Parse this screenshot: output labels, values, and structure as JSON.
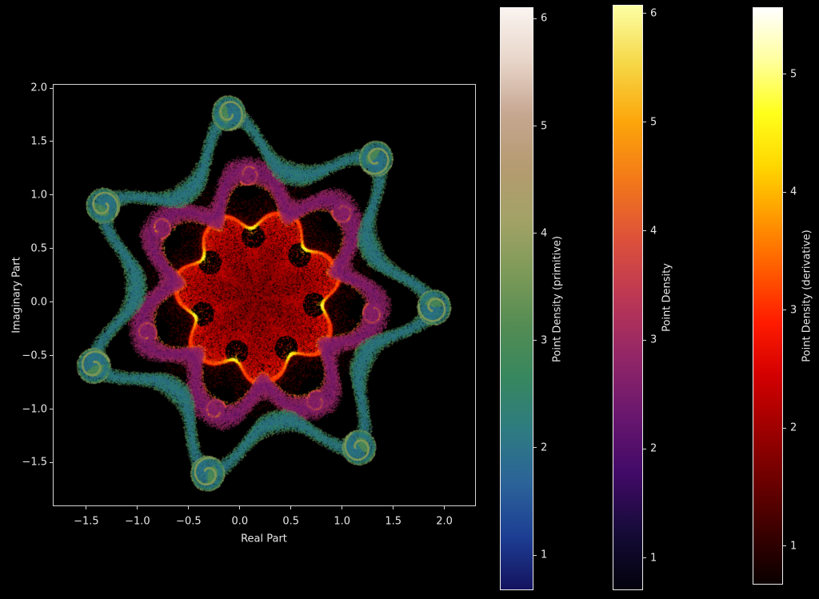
{
  "figure": {
    "background_color": "#000000",
    "text_color": "#e8e8e8",
    "spine_color": "#d4d4d4"
  },
  "axes": {
    "xlabel": "Real Part",
    "ylabel": "Imaginary Part",
    "xlim": [
      -1.82,
      2.3
    ],
    "ylim": [
      -1.9,
      2.03
    ],
    "x_tick_values": [
      -1.5,
      -1.0,
      -0.5,
      0.0,
      0.5,
      1.0,
      1.5,
      2.0
    ],
    "x_tick_labels": [
      "−1.5",
      "−1.0",
      "−0.5",
      "0.0",
      "0.5",
      "1.0",
      "1.5",
      "2.0"
    ],
    "y_tick_values": [
      2.0,
      1.5,
      1.0,
      0.5,
      0.0,
      -0.5,
      -1.0,
      -1.5
    ],
    "y_tick_labels": [
      "2.0",
      "1.5",
      "1.0",
      "0.5",
      "0.0",
      "−0.5",
      "−1.0",
      "−1.5"
    ]
  },
  "colorbars": [
    {
      "id": "primitive",
      "label": "Point Density (primitive)",
      "colormap": "gist_earth",
      "vmin": 0.68,
      "vmax": 6.1,
      "tick_values": [
        6,
        5,
        4,
        3,
        2,
        1
      ],
      "tick_labels": [
        "6",
        "5",
        "4",
        "3",
        "2",
        "1"
      ],
      "gradient_bottom_to_top": [
        "#14135f",
        "#1d3e93",
        "#2b6399",
        "#2e7b81",
        "#37875f",
        "#548c53",
        "#7d9a58",
        "#a3a266",
        "#b59b71",
        "#c6a791",
        "#e8d5c9",
        "#faf4f0"
      ]
    },
    {
      "id": "main",
      "label": "Point Density",
      "colormap": "inferno",
      "vmin": 0.71,
      "vmax": 6.07,
      "tick_values": [
        6,
        5,
        4,
        3,
        2,
        1
      ],
      "tick_labels": [
        "6",
        "5",
        "4",
        "3",
        "2",
        "1"
      ],
      "gradient_bottom_to_top": [
        "#02020c",
        "#160b39",
        "#420a68",
        "#6a176e",
        "#932667",
        "#bc3754",
        "#dd513a",
        "#f37819",
        "#fca50a",
        "#f6d746",
        "#fcffa4"
      ]
    },
    {
      "id": "derivative",
      "label": "Point Density (derivative)",
      "colormap": "hot",
      "vmin": 0.68,
      "vmax": 5.56,
      "tick_values": [
        5,
        4,
        3,
        2,
        1
      ],
      "tick_labels": [
        "5",
        "4",
        "3",
        "2",
        "1"
      ],
      "gradient_bottom_to_top": [
        "#0a0000",
        "#3b0000",
        "#6e0000",
        "#a10000",
        "#d40000",
        "#ff1c00",
        "#ff5b00",
        "#ff9900",
        "#ffd800",
        "#ffff1c",
        "#ffff9e",
        "#ffffff"
      ]
    }
  ],
  "chart_data": {
    "type": "scatter",
    "subtype": "density-colored point clouds of three complex point sets (polynomial, primitive, derivative) in the complex plane",
    "title": "",
    "xlabel": "Real Part",
    "ylabel": "Imaginary Part",
    "xlim": [
      -1.82,
      2.3
    ],
    "ylim": [
      -1.9,
      2.03
    ],
    "grid": false,
    "legend": "none (three separate colorbars)",
    "center": [
      0.17,
      0.06
    ],
    "symmetry_lobes": 7,
    "series": [
      {
        "name": "derivative (inner blob)",
        "colormap": "hot",
        "colorbar_label": "Point Density (derivative)",
        "density_range": [
          0.68,
          5.56
        ],
        "base_radius": 0.76,
        "lobe_amplitude": 0.085,
        "appearance": "speckled dark-red filled disk, bright orange rim with yellow cusps, dark holes under the arches"
      },
      {
        "name": "function (middle band)",
        "colormap": "inferno",
        "colorbar_label": "Point Density",
        "density_range": [
          0.71,
          6.07
        ],
        "ring_radius": 1.04,
        "lobe_amplitude": 0.165,
        "band_halfwidth": 0.145,
        "appearance": "wavy purple ribbon, bright magenta-orange inner edges with hook-shaped folds"
      },
      {
        "name": "primitive (outer band)",
        "colormap": "gist_earth",
        "colorbar_label": "Point Density (primitive)",
        "density_range": [
          0.68,
          6.1
        ],
        "ring_radius": 1.4,
        "lobe_amplitude": 0.26,
        "band_halfwidth": 0.12,
        "curl_radius": 0.165,
        "appearance": "meandering speckled blue-teal ribbon with bright green-yellow edges and spiral curl disks at the lobe tips"
      }
    ]
  }
}
